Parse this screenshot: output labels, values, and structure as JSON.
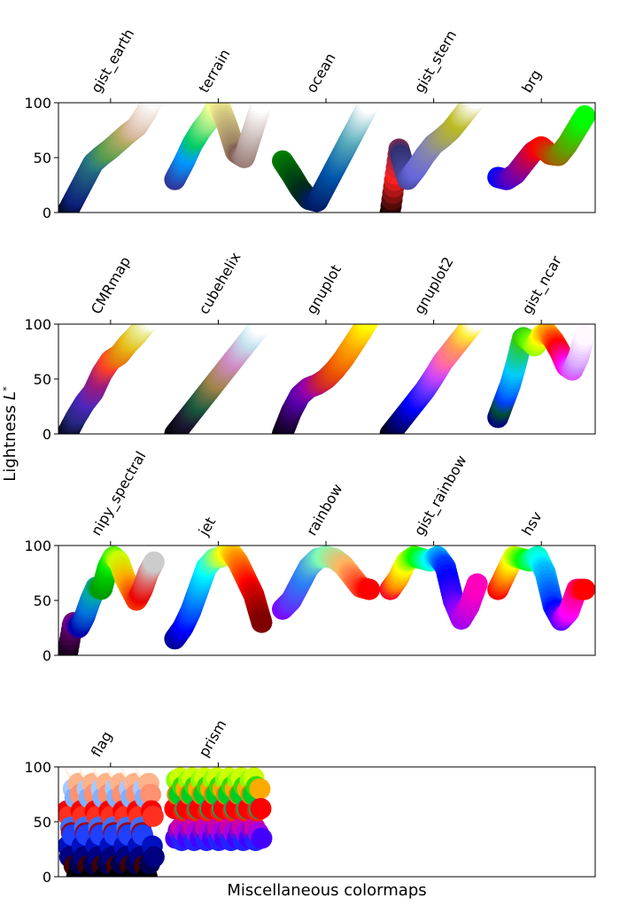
{
  "chart_data": {
    "type": "scatter",
    "xlabel": "Miscellaneous colormaps",
    "ylabel": "Lightness L*",
    "ylim": [
      0,
      100
    ],
    "xlim": [
      -0.1,
      6.08
    ],
    "yticks": [
      "0",
      "50",
      "100"
    ],
    "grid": false,
    "rows": [
      {
        "colormaps": [
          {
            "name": "gist_earth",
            "L": [
              0,
              15,
              30,
              45,
              52,
              58,
              65,
              72,
              78,
              90,
              105
            ],
            "stops": [
              [
                0,
                "#000000"
              ],
              [
                0.1,
                "#0c1f7a"
              ],
              [
                0.35,
                "#2a7a80"
              ],
              [
                0.5,
                "#5a9e4b"
              ],
              [
                0.7,
                "#b5ac63"
              ],
              [
                0.8,
                "#d9b8a0"
              ],
              [
                1,
                "#fdfbfb"
              ]
            ]
          },
          {
            "name": "terrain",
            "L": [
              30,
              45,
              62,
              75,
              85,
              100,
              80,
              55,
              50,
              75,
              100
            ],
            "stops": [
              [
                0,
                "#333399"
              ],
              [
                0.15,
                "#0099ff"
              ],
              [
                0.25,
                "#00cc66"
              ],
              [
                0.5,
                "#ffff99"
              ],
              [
                0.75,
                "#805c54"
              ],
              [
                1,
                "#ffffff"
              ]
            ]
          },
          {
            "name": "ocean",
            "L": [
              47,
              35,
              22,
              12,
              10,
              25,
              40,
              55,
              70,
              85,
              100
            ],
            "stops": [
              [
                0,
                "#008000"
              ],
              [
                0.25,
                "#002a1a"
              ],
              [
                0.4,
                "#001a66"
              ],
              [
                0.6,
                "#0055aa"
              ],
              [
                0.8,
                "#55aabb"
              ],
              [
                1,
                "#ffffff"
              ]
            ]
          },
          {
            "name": "gist_stern",
            "L": [
              0,
              58,
              30,
              40,
              52,
              62,
              68,
              75,
              85,
              95,
              105
            ],
            "stops": [
              [
                0,
                "#000000"
              ],
              [
                0.06,
                "#ff2020"
              ],
              [
                0.12,
                "#30306e"
              ],
              [
                0.3,
                "#6666dd"
              ],
              [
                0.5,
                "#8888aa"
              ],
              [
                0.8,
                "#bbbb22"
              ],
              [
                1,
                "#ffffff"
              ]
            ]
          },
          {
            "name": "brg",
            "L": [
              32,
              30,
              35,
              45,
              55,
              60,
              53,
              52,
              62,
              75,
              88
            ],
            "stops": [
              [
                0,
                "#0000ff"
              ],
              [
                0.25,
                "#8000a0"
              ],
              [
                0.5,
                "#ff0000"
              ],
              [
                0.75,
                "#808000"
              ],
              [
                1,
                "#00ff00"
              ]
            ]
          }
        ]
      },
      {
        "colormaps": [
          {
            "name": "CMRmap",
            "L": [
              0,
              15,
              28,
              38,
              55,
              67,
              72,
              82,
              90,
              100,
              105
            ],
            "stops": [
              [
                0,
                "#000000"
              ],
              [
                0.12,
                "#262680"
              ],
              [
                0.25,
                "#4d26bf"
              ],
              [
                0.37,
                "#991a80"
              ],
              [
                0.5,
                "#ff4026"
              ],
              [
                0.62,
                "#e6800d"
              ],
              [
                0.75,
                "#e6bf1a"
              ],
              [
                0.87,
                "#e6e680"
              ],
              [
                1,
                "#ffffff"
              ]
            ]
          },
          {
            "name": "cubehelix",
            "L": [
              0,
              10,
              20,
              30,
              40,
              50,
              60,
              70,
              80,
              90,
              100
            ],
            "stops": [
              [
                0,
                "#000000"
              ],
              [
                0.15,
                "#1a1530"
              ],
              [
                0.3,
                "#1a5a3e"
              ],
              [
                0.5,
                "#a18348"
              ],
              [
                0.7,
                "#d18bc4"
              ],
              [
                0.88,
                "#c3e3f0"
              ],
              [
                1,
                "#ffffff"
              ]
            ]
          },
          {
            "name": "gnuplot",
            "L": [
              0,
              20,
              35,
              42,
              45,
              50,
              58,
              68,
              80,
              92,
              105
            ],
            "stops": [
              [
                0,
                "#000000"
              ],
              [
                0.2,
                "#5500aa"
              ],
              [
                0.35,
                "#9900aa"
              ],
              [
                0.5,
                "#cc2233"
              ],
              [
                0.65,
                "#ee5500"
              ],
              [
                0.85,
                "#ffaa00"
              ],
              [
                1,
                "#ffff00"
              ]
            ]
          },
          {
            "name": "gnuplot2",
            "L": [
              0,
              10,
              20,
              30,
              40,
              52,
              65,
              75,
              85,
              95,
              105
            ],
            "stops": [
              [
                0,
                "#000000"
              ],
              [
                0.2,
                "#0000aa"
              ],
              [
                0.3,
                "#0000ff"
              ],
              [
                0.45,
                "#6633ff"
              ],
              [
                0.55,
                "#cc44ff"
              ],
              [
                0.65,
                "#ff66aa"
              ],
              [
                0.8,
                "#ff9955"
              ],
              [
                0.92,
                "#ffee33"
              ],
              [
                1,
                "#ffffff"
              ]
            ]
          },
          {
            "name": "gist_ncar",
            "L": [
              15,
              30,
              45,
              65,
              88,
              85,
              80,
              90,
              92,
              85,
              75,
              62,
              58,
              70,
              90
            ],
            "stops": [
              [
                0,
                "#000080"
              ],
              [
                0.05,
                "#004d33"
              ],
              [
                0.1,
                "#0040ff"
              ],
              [
                0.2,
                "#00ccff"
              ],
              [
                0.3,
                "#33cc00"
              ],
              [
                0.4,
                "#66ff00"
              ],
              [
                0.5,
                "#ffff00"
              ],
              [
                0.6,
                "#ff9900"
              ],
              [
                0.7,
                "#ff0000"
              ],
              [
                0.8,
                "#ff00ff"
              ],
              [
                0.9,
                "#cc88ff"
              ],
              [
                1,
                "#fff8ff"
              ]
            ]
          }
        ]
      },
      {
        "colormaps": [
          {
            "name": "nipy_spectral",
            "L": [
              0,
              30,
              25,
              35,
              50,
              62,
              60,
              80,
              90,
              85,
              70,
              60,
              50,
              60,
              75,
              85
            ],
            "stops": [
              [
                0,
                "#000000"
              ],
              [
                0.08,
                "#7a0088"
              ],
              [
                0.15,
                "#0000aa"
              ],
              [
                0.25,
                "#0077dd"
              ],
              [
                0.32,
                "#00aaaa"
              ],
              [
                0.4,
                "#009900"
              ],
              [
                0.5,
                "#00ee00"
              ],
              [
                0.6,
                "#ccff00"
              ],
              [
                0.7,
                "#ffaa00"
              ],
              [
                0.85,
                "#ee0000"
              ],
              [
                1,
                "#cccccc"
              ]
            ]
          },
          {
            "name": "jet",
            "L": [
              15,
              25,
              40,
              60,
              80,
              88,
              90,
              95,
              85,
              70,
              55,
              30
            ],
            "stops": [
              [
                0,
                "#00008f"
              ],
              [
                0.12,
                "#0000ff"
              ],
              [
                0.37,
                "#00ffff"
              ],
              [
                0.62,
                "#ffff00"
              ],
              [
                0.87,
                "#ff0000"
              ],
              [
                1,
                "#800000"
              ]
            ]
          },
          {
            "name": "rainbow",
            "L": [
              42,
              50,
              65,
              80,
              88,
              90,
              88,
              82,
              72,
              62,
              60
            ],
            "stops": [
              [
                0,
                "#8000ff"
              ],
              [
                0.25,
                "#2b7ef6"
              ],
              [
                0.5,
                "#80ffb4"
              ],
              [
                0.75,
                "#ffb360"
              ],
              [
                1,
                "#ff0000"
              ]
            ]
          },
          {
            "name": "gist_rainbow",
            "L": [
              60,
              70,
              85,
              90,
              88,
              86,
              90,
              80,
              50,
              33,
              45,
              65
            ],
            "stops": [
              [
                0,
                "#ff0028"
              ],
              [
                0.08,
                "#ff8800"
              ],
              [
                0.17,
                "#ffff00"
              ],
              [
                0.33,
                "#00ff00"
              ],
              [
                0.5,
                "#00ffff"
              ],
              [
                0.67,
                "#0000ff"
              ],
              [
                0.78,
                "#8800ff"
              ],
              [
                1,
                "#ff00bf"
              ]
            ]
          },
          {
            "name": "hsv",
            "L": [
              60,
              75,
              90,
              88,
              86,
              90,
              75,
              45,
              32,
              40,
              60,
              60
            ],
            "stops": [
              [
                0,
                "#ff0000"
              ],
              [
                0.17,
                "#ffff00"
              ],
              [
                0.33,
                "#00ff00"
              ],
              [
                0.5,
                "#00ffff"
              ],
              [
                0.67,
                "#0000ff"
              ],
              [
                0.83,
                "#ff00ff"
              ],
              [
                1,
                "#ff0000"
              ]
            ]
          }
        ]
      },
      {
        "colormaps": [
          {
            "name": "flag",
            "palette": [
              [
                "#ff0000",
                60
              ],
              [
                "#ffb38a",
                85
              ],
              [
                "#fff0e0",
                98
              ],
              [
                "#a8c8ff",
                80
              ],
              [
                "#4070ff",
                45
              ],
              [
                "#0010c0",
                28
              ],
              [
                "#000050",
                12
              ],
              [
                "#000000",
                0
              ],
              [
                "#400000",
                10
              ],
              [
                "#a00000",
                40
              ],
              [
                "#ff3020",
                55
              ],
              [
                "#ff9070",
                75
              ],
              [
                "#ffffff",
                100
              ],
              [
                "#80b0ff",
                72
              ],
              [
                "#2040ff",
                38
              ],
              [
                "#000080",
                18
              ]
            ]
          },
          {
            "name": "prism",
            "palette": [
              [
                "#ff0000",
                62
              ],
              [
                "#ff8000",
                75
              ],
              [
                "#ccff00",
                90
              ],
              [
                "#33dd00",
                82
              ],
              [
                "#00aa66",
                62
              ],
              [
                "#4400ff",
                35
              ],
              [
                "#8800cc",
                42
              ],
              [
                "#cc00aa",
                45
              ],
              [
                "#ff2000",
                60
              ],
              [
                "#ffaa00",
                80
              ],
              [
                "#88ff00",
                88
              ],
              [
                "#00cc22",
                75
              ],
              [
                "#2222ff",
                33
              ],
              [
                "#aa00dd",
                40
              ]
            ]
          }
        ]
      }
    ]
  }
}
